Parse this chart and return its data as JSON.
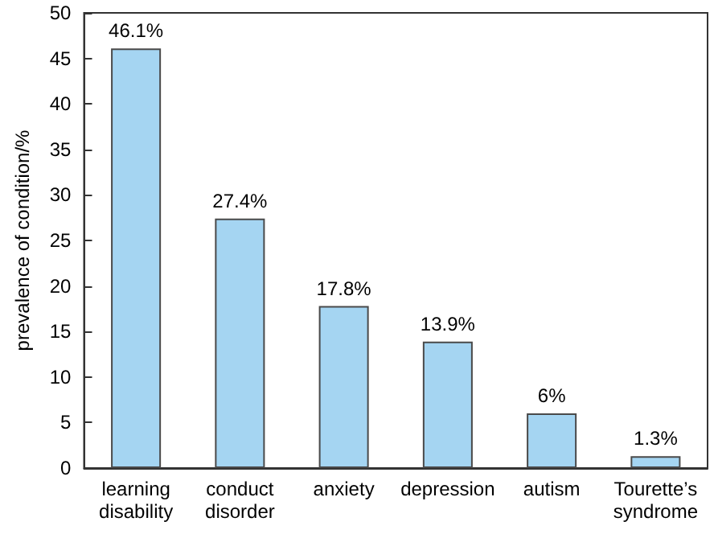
{
  "chart_data": {
    "type": "bar",
    "ylabel": "prevalence of condition/%",
    "categories": [
      "learning disability",
      "conduct disorder",
      "anxiety",
      "depression",
      "autism",
      "Tourette’s syndrome"
    ],
    "values": [
      46.1,
      27.4,
      17.8,
      13.9,
      6,
      1.3
    ],
    "value_labels": [
      "46.1%",
      "27.4%",
      "17.8%",
      "13.9%",
      "6%",
      "1.3%"
    ],
    "color": "#a5d5f2",
    "ylim": [
      0,
      50
    ],
    "yticks": [
      0,
      5,
      10,
      15,
      20,
      25,
      30,
      35,
      40,
      45,
      50
    ],
    "grid": false
  }
}
